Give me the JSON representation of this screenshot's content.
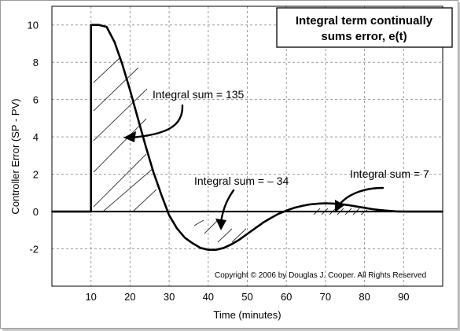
{
  "chart_data": {
    "type": "line",
    "title": "Integral term continually sums error, e(t)",
    "title_lines": [
      "Integral term continually",
      "sums error, e(t)"
    ],
    "xlabel": "Time (minutes)",
    "ylabel": "Controller Error (SP - PV)",
    "xlim": [
      0,
      100
    ],
    "ylim": [
      -4,
      11
    ],
    "x_ticks": [
      10,
      20,
      30,
      40,
      50,
      60,
      70,
      80,
      90
    ],
    "y_ticks": [
      -2,
      0,
      2,
      4,
      6,
      8,
      10
    ],
    "grid": true,
    "legend": "none",
    "series": [
      {
        "x": [
          0,
          10,
          10,
          12,
          14,
          16,
          18,
          20,
          22,
          24,
          26,
          28,
          30,
          32,
          34,
          36,
          38,
          40,
          42,
          44,
          46,
          48,
          50,
          52,
          54,
          56,
          58,
          60,
          62,
          64,
          66,
          68,
          70,
          72,
          74,
          76,
          78,
          80,
          82,
          84,
          86,
          88,
          90,
          92,
          100
        ],
        "y": [
          0,
          0,
          10,
          10,
          9.9,
          9.1,
          7.9,
          6.5,
          5.0,
          3.5,
          2.1,
          0.9,
          -0.2,
          -0.9,
          -1.4,
          -1.7,
          -1.95,
          -2.05,
          -2.05,
          -1.95,
          -1.75,
          -1.5,
          -1.2,
          -0.9,
          -0.6,
          -0.35,
          -0.12,
          0.05,
          0.2,
          0.3,
          0.38,
          0.42,
          0.44,
          0.43,
          0.4,
          0.34,
          0.27,
          0.2,
          0.13,
          0.08,
          0.04,
          0.01,
          0,
          0,
          0
        ]
      }
    ],
    "annotations": [
      {
        "text": "Integral sum = 135"
      },
      {
        "text": "Integral sum = – 34"
      },
      {
        "text": "Integral sum = 7"
      }
    ],
    "copyright": "Copyright © 2006 by Douglas J. Cooper.  All Rights Reserved"
  }
}
